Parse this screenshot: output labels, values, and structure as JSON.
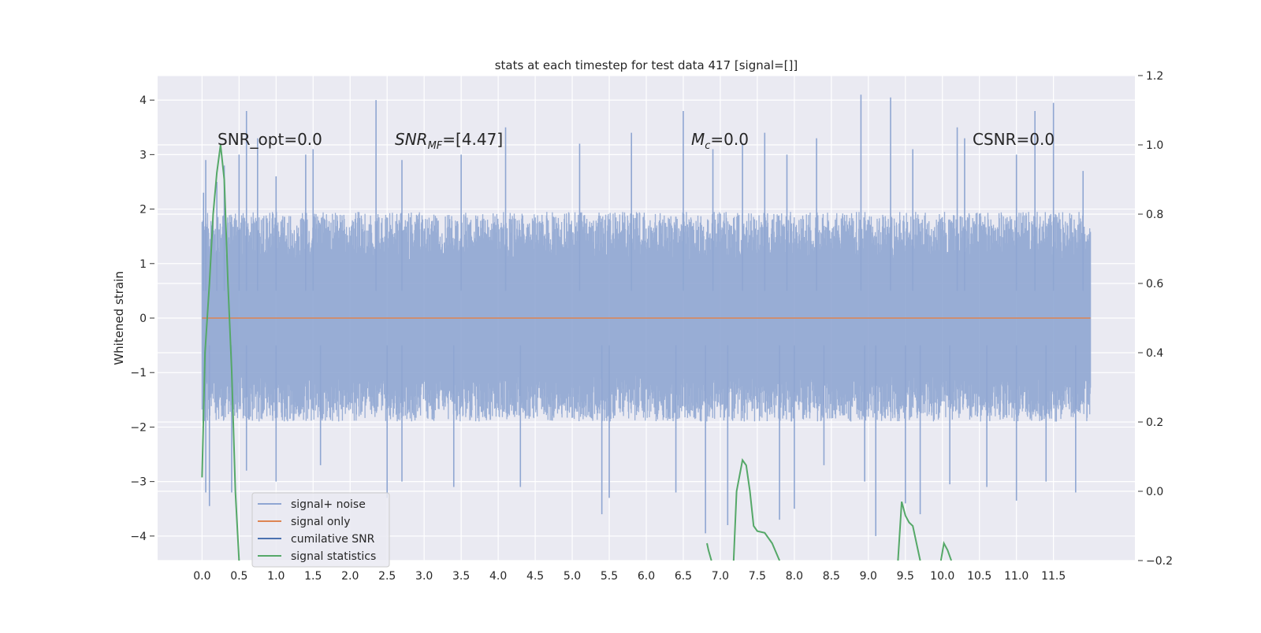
{
  "chart_data": {
    "type": "line",
    "title": "stats at each timestep for test data 417 [signal=[]]",
    "xlabel": "",
    "ylabel": "Whitened strain",
    "y2label": "",
    "xlim": [
      -0.6,
      12.6
    ],
    "ylim": [
      -4.45,
      4.45
    ],
    "y2lim": [
      -0.2,
      1.2
    ],
    "grid": true,
    "legend_position": "lower-left",
    "x_ticks": [
      "0.0",
      "0.5",
      "1.0",
      "1.5",
      "2.0",
      "2.5",
      "3.0",
      "3.5",
      "4.0",
      "4.5",
      "5.0",
      "5.5",
      "6.0",
      "6.5",
      "7.0",
      "7.5",
      "8.0",
      "8.5",
      "9.0",
      "9.5",
      "10.0",
      "10.5",
      "11.0",
      "11.5"
    ],
    "y_ticks": [
      "4",
      "3",
      "2",
      "1",
      "0",
      "−1",
      "−2",
      "−3",
      "−4"
    ],
    "y2_ticks": [
      "1.2",
      "1.0",
      "0.8",
      "0.6",
      "0.4",
      "0.2",
      "0.0",
      "−0.2"
    ],
    "annotations": {
      "snr_opt": "SNR_opt=0.0",
      "snr_mf": "=[4.47]",
      "mc": "=0.0",
      "csnr": "CSNR=0.0"
    },
    "series": [
      {
        "name": "signal+ noise",
        "axis": "left",
        "color": "#8fa6d2",
        "x_range": [
          0.0,
          12.0
        ],
        "envelope_typical": [
          -1.9,
          1.95
        ],
        "peaks": [
          [
            0.02,
            2.3
          ],
          [
            0.05,
            2.9
          ],
          [
            0.2,
            2.5
          ],
          [
            0.3,
            2.8
          ],
          [
            0.5,
            3.0
          ],
          [
            0.6,
            3.8
          ],
          [
            0.75,
            3.3
          ],
          [
            1.0,
            2.6
          ],
          [
            1.4,
            3.0
          ],
          [
            1.5,
            3.1
          ],
          [
            2.35,
            4.0
          ],
          [
            2.7,
            2.9
          ],
          [
            3.5,
            3.0
          ],
          [
            4.1,
            3.5
          ],
          [
            5.1,
            3.2
          ],
          [
            5.8,
            3.4
          ],
          [
            6.5,
            3.8
          ],
          [
            6.9,
            3.1
          ],
          [
            7.3,
            3.2
          ],
          [
            7.6,
            3.4
          ],
          [
            7.9,
            3.0
          ],
          [
            8.3,
            3.3
          ],
          [
            8.9,
            4.1
          ],
          [
            9.3,
            4.05
          ],
          [
            9.6,
            3.1
          ],
          [
            10.2,
            3.5
          ],
          [
            10.3,
            3.3
          ],
          [
            11.0,
            3.0
          ],
          [
            11.25,
            3.8
          ],
          [
            11.5,
            3.95
          ],
          [
            11.9,
            2.7
          ]
        ],
        "troughs": [
          [
            0.05,
            -3.2
          ],
          [
            0.1,
            -3.45
          ],
          [
            0.4,
            -3.2
          ],
          [
            0.6,
            -2.8
          ],
          [
            1.0,
            -3.0
          ],
          [
            1.6,
            -2.7
          ],
          [
            2.5,
            -3.3
          ],
          [
            2.7,
            -3.0
          ],
          [
            3.4,
            -3.1
          ],
          [
            4.3,
            -3.1
          ],
          [
            5.4,
            -3.6
          ],
          [
            5.5,
            -3.3
          ],
          [
            6.4,
            -3.2
          ],
          [
            6.8,
            -3.95
          ],
          [
            7.1,
            -3.8
          ],
          [
            7.8,
            -3.7
          ],
          [
            8.0,
            -3.5
          ],
          [
            8.4,
            -2.7
          ],
          [
            8.95,
            -3.0
          ],
          [
            9.1,
            -4.0
          ],
          [
            9.5,
            -3.4
          ],
          [
            9.7,
            -3.6
          ],
          [
            10.1,
            -3.05
          ],
          [
            10.6,
            -3.1
          ],
          [
            11.0,
            -3.35
          ],
          [
            11.4,
            -3.0
          ],
          [
            11.8,
            -3.2
          ]
        ]
      },
      {
        "name": "signal only",
        "axis": "left",
        "color": "#dd8452",
        "x": [
          0.0,
          12.0
        ],
        "y": [
          0.0,
          0.0
        ]
      },
      {
        "name": "cumilative SNR",
        "axis": "left",
        "color": "#4c72b0",
        "x": [],
        "y": []
      },
      {
        "name": "signal statistics",
        "axis": "right",
        "color": "#55a868",
        "segments": [
          {
            "x": [
              0.0,
              0.04,
              0.1,
              0.15,
              0.2,
              0.25,
              0.3,
              0.35,
              0.4,
              0.45,
              0.5
            ],
            "y": [
              0.04,
              0.4,
              0.6,
              0.8,
              0.92,
              1.0,
              0.9,
              0.6,
              0.35,
              0.0,
              -0.2
            ]
          },
          {
            "x": [
              6.82,
              6.84,
              6.88
            ],
            "y": [
              -0.15,
              -0.17,
              -0.2
            ]
          },
          {
            "x": [
              7.18,
              7.22,
              7.3,
              7.35,
              7.4,
              7.45,
              7.5,
              7.6,
              7.7,
              7.8
            ],
            "y": [
              -0.2,
              0.0,
              0.09,
              0.075,
              0.0,
              -0.1,
              -0.115,
              -0.12,
              -0.15,
              -0.2
            ]
          },
          {
            "x": [
              9.4,
              9.45,
              9.5,
              9.55,
              9.6,
              9.7
            ],
            "y": [
              -0.2,
              -0.03,
              -0.07,
              -0.09,
              -0.1,
              -0.2
            ]
          },
          {
            "x": [
              9.98,
              10.02,
              10.07,
              10.12
            ],
            "y": [
              -0.2,
              -0.15,
              -0.17,
              -0.2
            ]
          }
        ]
      }
    ]
  }
}
